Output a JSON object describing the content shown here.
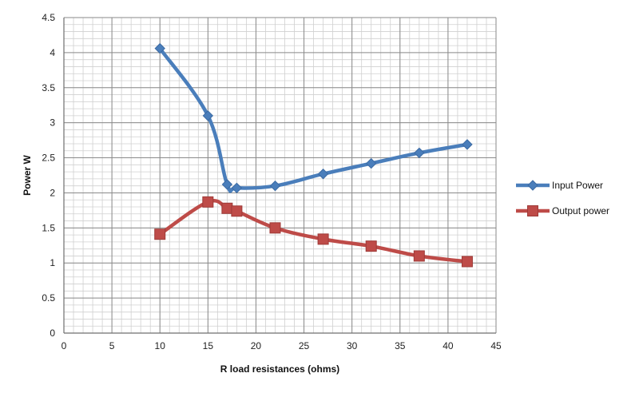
{
  "chart_data": {
    "type": "line",
    "title": "",
    "xlabel": "R load resistances (ohms)",
    "ylabel": "Power W",
    "xlim": [
      0,
      45
    ],
    "ylim": [
      0,
      4.5
    ],
    "x_major_ticks": [
      0,
      5,
      10,
      15,
      20,
      25,
      30,
      35,
      40,
      45
    ],
    "y_major_ticks": [
      0,
      0.5,
      1,
      1.5,
      2,
      2.5,
      3,
      3.5,
      4,
      4.5
    ],
    "x_minor_step": 1,
    "y_minor_step": 0.1,
    "grid": true,
    "legend_position": "right",
    "series": [
      {
        "name": "Input Power",
        "color": "#4a7ebb",
        "marker": "diamond",
        "points": [
          [
            10,
            4.06
          ],
          [
            15,
            3.1
          ],
          [
            17,
            2.12
          ],
          [
            18,
            2.07
          ],
          [
            22,
            2.1
          ],
          [
            27,
            2.27
          ],
          [
            32,
            2.42
          ],
          [
            37,
            2.57
          ],
          [
            42,
            2.69
          ]
        ]
      },
      {
        "name": "Output power",
        "color": "#be4b48",
        "marker": "square",
        "points": [
          [
            10,
            1.41
          ],
          [
            15,
            1.87
          ],
          [
            17,
            1.78
          ],
          [
            18,
            1.74
          ],
          [
            22,
            1.5
          ],
          [
            27,
            1.34
          ],
          [
            32,
            1.24
          ],
          [
            37,
            1.1
          ],
          [
            42,
            1.02
          ]
        ]
      }
    ]
  }
}
